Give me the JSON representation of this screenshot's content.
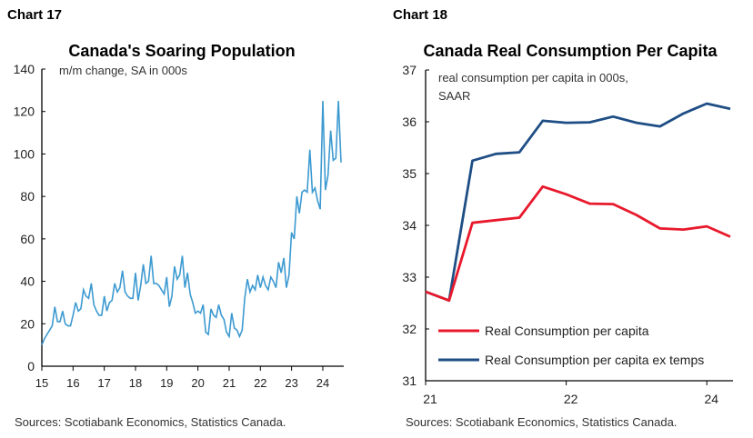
{
  "chart_data": [
    {
      "type": "line",
      "label": "Chart 17",
      "title": "Canada's Soaring Population",
      "subtitle": "m/m change, SA in 000s",
      "source": "Sources: Scotiabank Economics, Statistics Canada.",
      "x_start": "2015-01",
      "x_frequency": "monthly",
      "xticks": [
        "15",
        "16",
        "17",
        "18",
        "19",
        "20",
        "21",
        "22",
        "23",
        "24"
      ],
      "ylim": [
        0,
        140
      ],
      "yticks": [
        0,
        20,
        40,
        60,
        80,
        100,
        120,
        140
      ],
      "grid": false,
      "color": "#3d9ad1",
      "series": [
        {
          "values": [
            10,
            13,
            15,
            17,
            19,
            28,
            21,
            21,
            26,
            20,
            19,
            19,
            24,
            30,
            26,
            27,
            36,
            33,
            32,
            39,
            29,
            26,
            24,
            24,
            33,
            26,
            30,
            31,
            39,
            35,
            37,
            45,
            35,
            33,
            32,
            32,
            44,
            31,
            38,
            48,
            39,
            40,
            52,
            39,
            39,
            38,
            36,
            34,
            42,
            28,
            33,
            47,
            41,
            43,
            52,
            37,
            44,
            34,
            30,
            25,
            26,
            25,
            29,
            16,
            15,
            27,
            24,
            23,
            29,
            24,
            22,
            16,
            14,
            25,
            18,
            17,
            14,
            17,
            32,
            41,
            35,
            38,
            36,
            43,
            37,
            42,
            38,
            36,
            42,
            40,
            37,
            49,
            44,
            51,
            37,
            43,
            63,
            60,
            80,
            72,
            82,
            83,
            82,
            102,
            82,
            84,
            78,
            74,
            125,
            83,
            90,
            111,
            97,
            98,
            125,
            96
          ]
        }
      ]
    },
    {
      "type": "line",
      "label": "Chart 18",
      "title": "Canada Real Consumption Per Capita",
      "subtitle": "real consumption per capita in 000s, SAAR",
      "source": "Sources: Scotiabank Economics, Statistics Canada.",
      "x_frequency": "quarterly",
      "xticks": [
        {
          "index": 0,
          "label": "21"
        },
        {
          "index": 6,
          "label": "22"
        },
        {
          "index": 12,
          "label": "24"
        }
      ],
      "ylim": [
        31,
        37
      ],
      "yticks": [
        31,
        32,
        33,
        34,
        35,
        36,
        37
      ],
      "grid": false,
      "legend": "bottom-left",
      "series": [
        {
          "name": "Real Consumption per capita",
          "color": "#e8192c",
          "values": [
            32.72,
            32.55,
            34.05,
            34.1,
            34.15,
            34.75,
            34.6,
            34.42,
            34.41,
            34.2,
            33.94,
            33.92,
            33.98,
            33.78
          ]
        },
        {
          "name": "Real Consumption per capita ex temps",
          "color": "#1f4e85",
          "values": [
            32.72,
            32.55,
            35.25,
            35.38,
            35.41,
            36.02,
            35.98,
            35.99,
            36.1,
            35.98,
            35.91,
            36.16,
            36.35,
            36.25
          ]
        }
      ]
    }
  ]
}
